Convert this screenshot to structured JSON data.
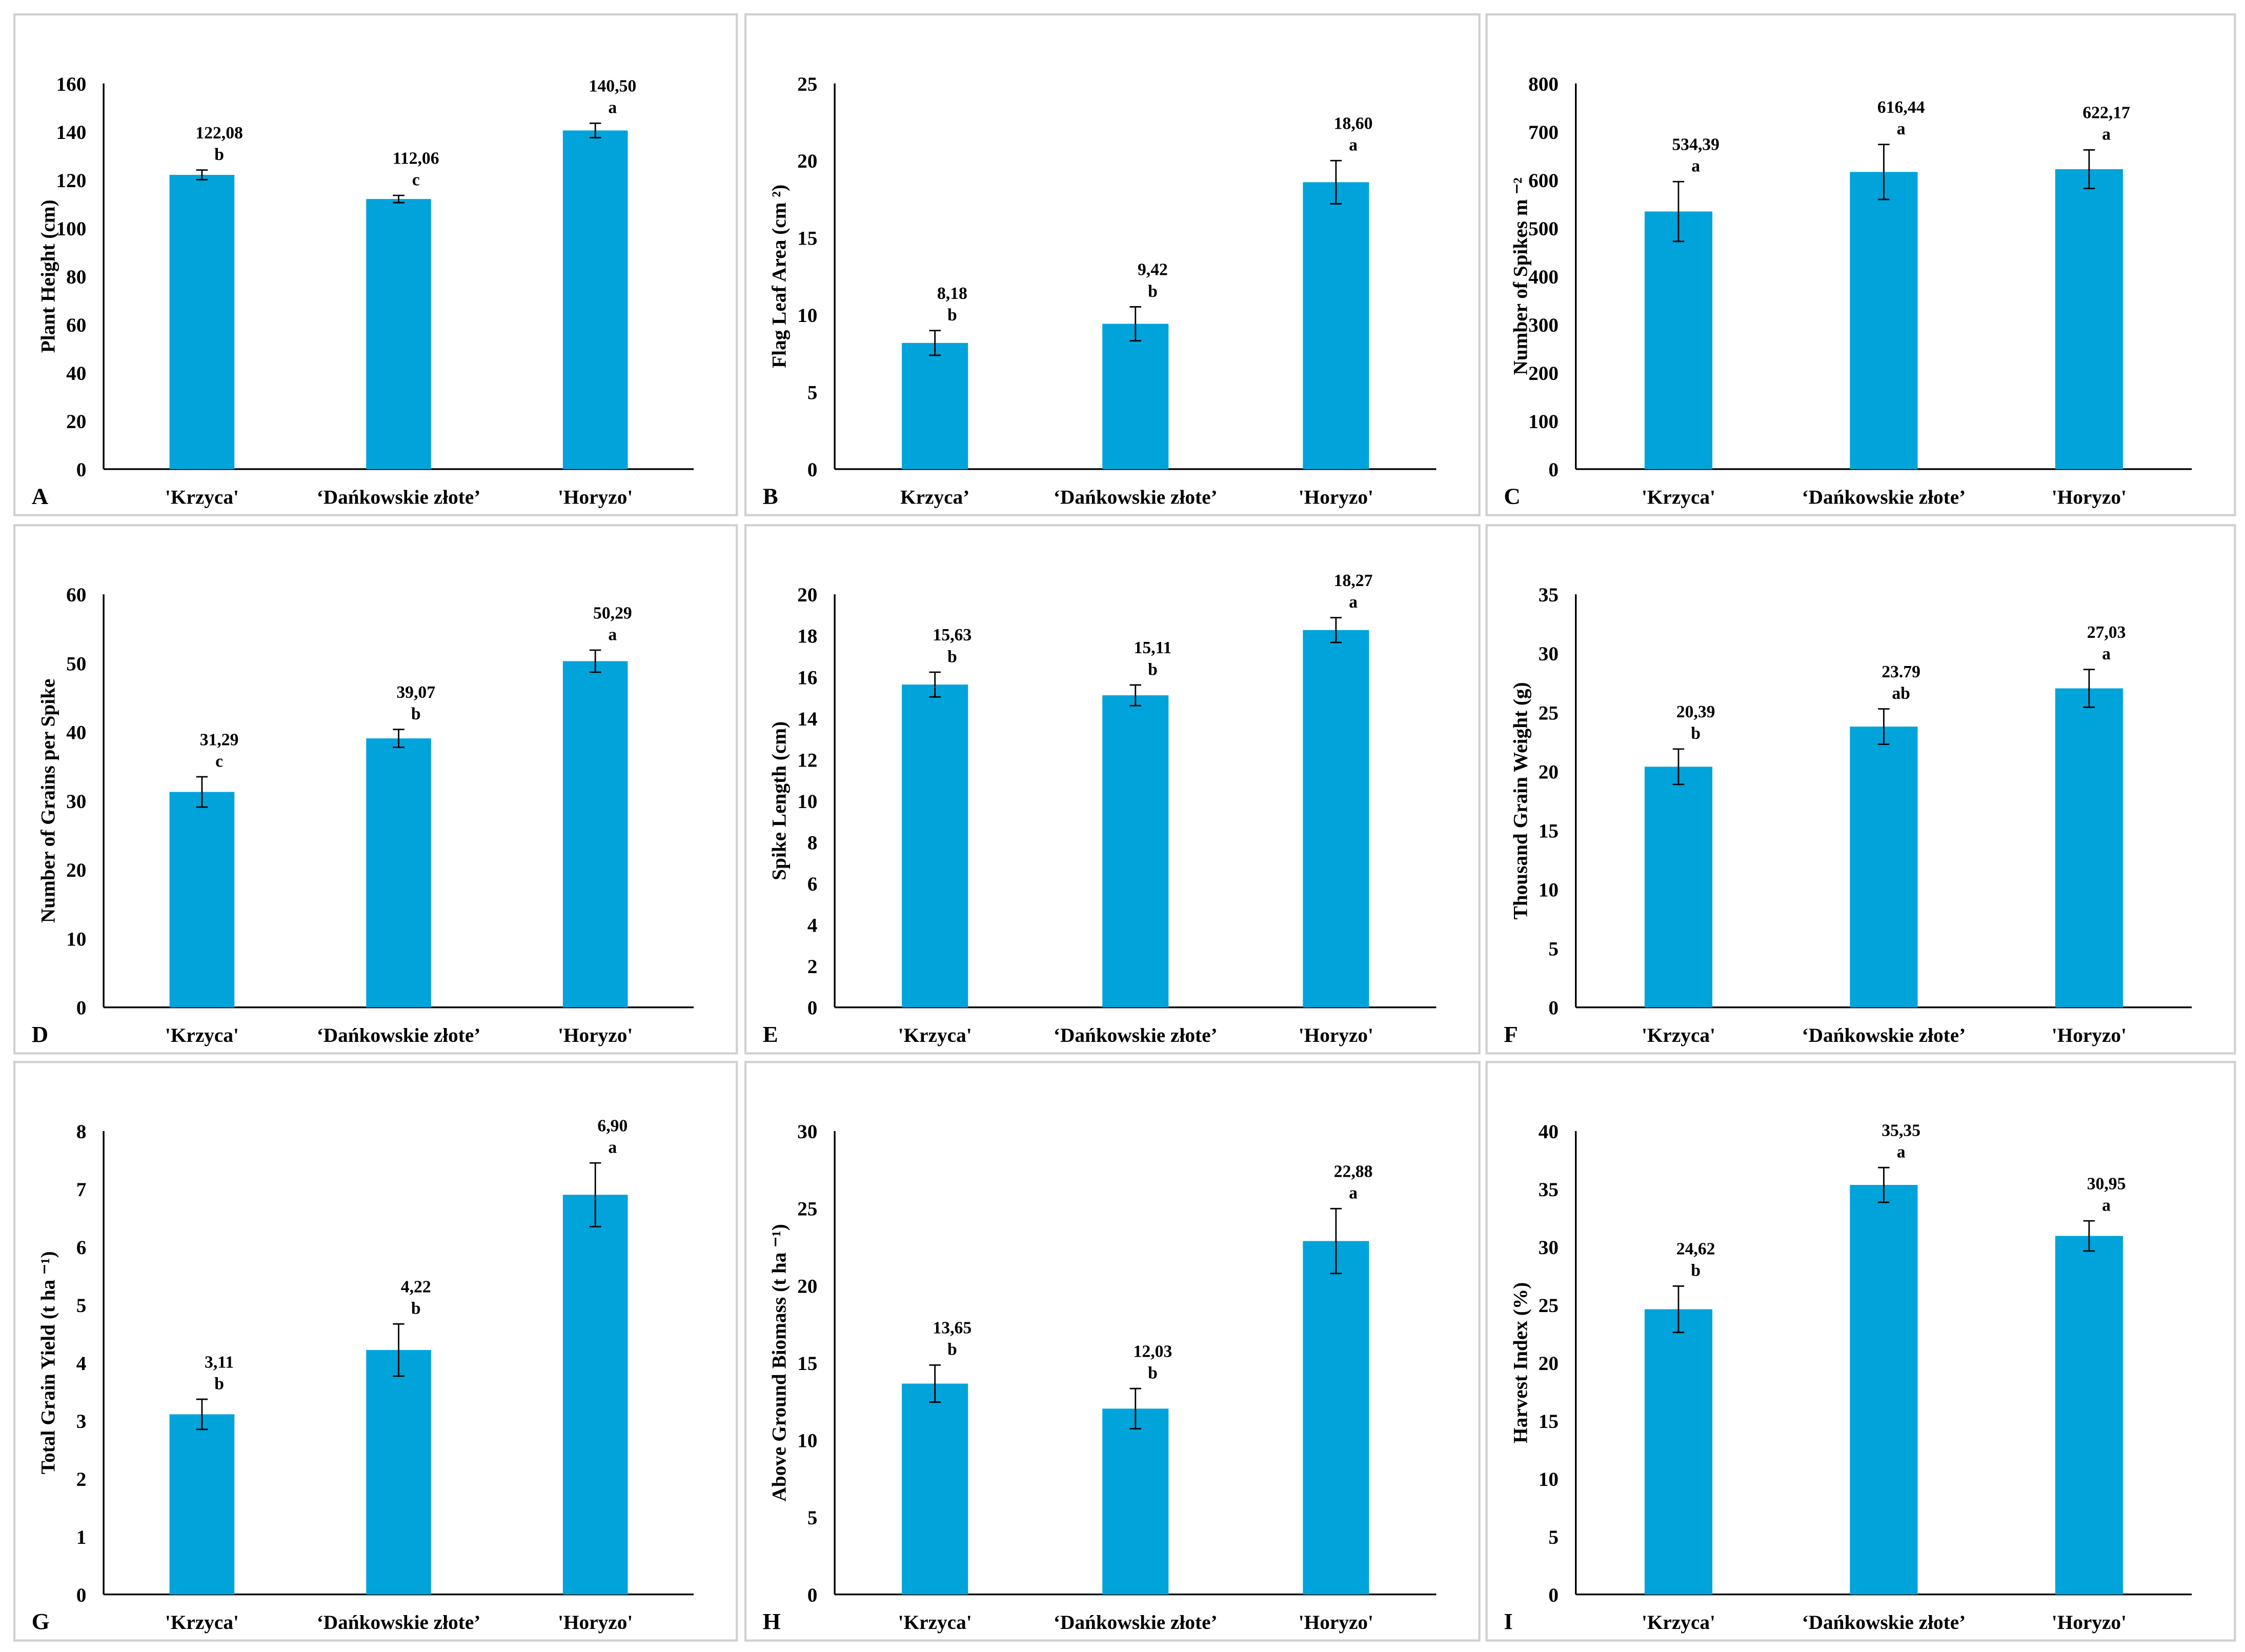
{
  "bar_color": "#00A3DA",
  "chart_data": [
    {
      "panel": "A",
      "type": "bar",
      "ylabel": "Plant Height (cm)",
      "ylim": [
        0,
        160
      ],
      "ystep": 20,
      "categories": [
        "'Krzyca'",
        "‘Dańkowskie złote’",
        "'Horyzo'"
      ],
      "values": [
        122.08,
        112.06,
        140.5
      ],
      "errors": [
        2,
        1.5,
        3
      ],
      "labels": [
        "122,08",
        "112,06",
        "140,50"
      ],
      "letters": [
        "b",
        "c",
        "a"
      ]
    },
    {
      "panel": "B",
      "type": "bar",
      "ylabel": "Flag Leaf Area (cm ²)",
      "ylim": [
        0,
        25
      ],
      "ystep": 5,
      "categories": [
        "Krzyca’",
        "‘Dańkowskie złote’",
        "'Horyzo'"
      ],
      "values": [
        8.18,
        9.42,
        18.6
      ],
      "errors": [
        0.8,
        1.1,
        1.4
      ],
      "labels": [
        "8,18",
        "9,42",
        "18,60"
      ],
      "letters": [
        "b",
        "b",
        "a"
      ]
    },
    {
      "panel": "C",
      "type": "bar",
      "ylabel": "Number of Spikes m ⁻²",
      "ylim": [
        0,
        800
      ],
      "ystep": 100,
      "categories": [
        "'Krzyca'",
        "‘Dańkowskie złote’",
        "'Horyzo'"
      ],
      "values": [
        534.39,
        616.44,
        622.17
      ],
      "errors": [
        62,
        57,
        40
      ],
      "labels": [
        "534,39",
        "616,44",
        "622,17"
      ],
      "letters": [
        "a",
        "a",
        "a"
      ]
    },
    {
      "panel": "D",
      "type": "bar",
      "ylabel": "Number of Grains per Spike",
      "ylim": [
        0,
        60
      ],
      "ystep": 10,
      "categories": [
        "'Krzyca'",
        "‘Dańkowskie złote’",
        "'Horyzo'"
      ],
      "values": [
        31.29,
        39.07,
        50.29
      ],
      "errors": [
        2.2,
        1.3,
        1.6
      ],
      "labels": [
        "31,29",
        "39,07",
        "50,29"
      ],
      "letters": [
        "c",
        "b",
        "a"
      ]
    },
    {
      "panel": "E",
      "type": "bar",
      "ylabel": "Spike Length (cm)",
      "ylim": [
        0,
        20
      ],
      "ystep": 2,
      "categories": [
        "'Krzyca'",
        "‘Dańkowskie złote’",
        "'Horyzo'"
      ],
      "values": [
        15.63,
        15.11,
        18.27
      ],
      "errors": [
        0.6,
        0.5,
        0.6
      ],
      "labels": [
        "15,63",
        "15,11",
        "18,27"
      ],
      "letters": [
        "b",
        "b",
        "a"
      ]
    },
    {
      "panel": "F",
      "type": "bar",
      "ylabel": "Thousand Grain Weight (g)",
      "ylim": [
        0,
        35
      ],
      "ystep": 5,
      "categories": [
        "'Krzyca'",
        "‘Dańkowskie złote’",
        "'Horyzo'"
      ],
      "values": [
        20.39,
        23.79,
        27.03
      ],
      "errors": [
        1.5,
        1.5,
        1.6
      ],
      "labels": [
        "20,39",
        "23.79",
        "27,03"
      ],
      "letters": [
        "b",
        "ab",
        "a"
      ]
    },
    {
      "panel": "G",
      "type": "bar",
      "ylabel": "Total Grain Yield (t ha ⁻¹)",
      "ylim": [
        0,
        8
      ],
      "ystep": 1,
      "categories": [
        "'Krzyca'",
        "‘Dańkowskie złote’",
        "'Horyzo'"
      ],
      "values": [
        3.11,
        4.22,
        6.9
      ],
      "errors": [
        0.26,
        0.45,
        0.55
      ],
      "labels": [
        "3,11",
        "4,22",
        "6,90"
      ],
      "letters": [
        "b",
        "b",
        "a"
      ]
    },
    {
      "panel": "H",
      "type": "bar",
      "ylabel": "Above Ground Biomass (t ha ⁻¹)",
      "ylim": [
        0,
        30
      ],
      "ystep": 5,
      "categories": [
        "'Krzyca'",
        "‘Dańkowskie złote’",
        "'Horyzo'"
      ],
      "values": [
        13.65,
        12.03,
        22.88
      ],
      "errors": [
        1.2,
        1.3,
        2.1
      ],
      "labels": [
        "13,65",
        "12,03",
        "22,88"
      ],
      "letters": [
        "b",
        "b",
        "a"
      ]
    },
    {
      "panel": "I",
      "type": "bar",
      "ylabel": "Harvest Index (%)",
      "ylim": [
        0,
        40
      ],
      "ystep": 5,
      "categories": [
        "'Krzyca'",
        "‘Dańkowskie złote’",
        "'Horyzo'"
      ],
      "values": [
        24.62,
        35.35,
        30.95
      ],
      "errors": [
        2,
        1.5,
        1.3
      ],
      "labels": [
        "24,62",
        "35,35",
        "30,95"
      ],
      "letters": [
        "b",
        "a",
        "a"
      ]
    }
  ]
}
